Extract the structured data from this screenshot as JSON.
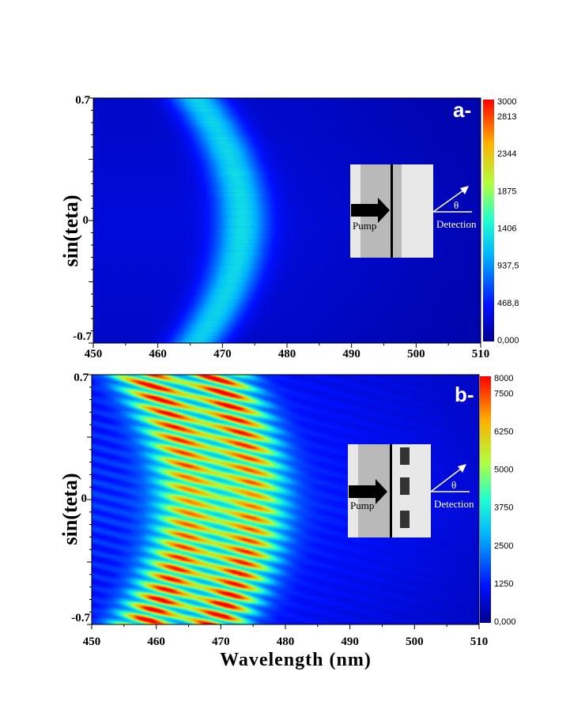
{
  "chart_data": [
    {
      "type": "heatmap",
      "panel_label": "a-",
      "xlabel": "",
      "ylabel": "sin(teta)",
      "xlim": [
        450,
        510
      ],
      "ylim": [
        -0.7,
        0.7
      ],
      "x_ticks": [
        "450",
        "460",
        "470",
        "480",
        "490",
        "500",
        "510"
      ],
      "y_ticks": [
        "0.7",
        "0",
        "-0.7"
      ],
      "colorbar_ticks": [
        "3000",
        "2813",
        "2344",
        "1875",
        "1406",
        "937,5",
        "468,8",
        "0,000"
      ],
      "colorbar_range": [
        0,
        3000
      ],
      "band": {
        "center_wavelength_at_zero": 473,
        "edge_wavelength": 466,
        "width_nm": 4,
        "peak": 1300,
        "background": 300
      },
      "inset": {
        "pump_label": "Pump",
        "detection_label": "Detection",
        "angle_label": "θ"
      }
    },
    {
      "type": "heatmap",
      "panel_label": "b-",
      "xlabel": "Wavelength (nm)",
      "ylabel": "sin(teta)",
      "xlim": [
        450,
        510
      ],
      "ylim": [
        -0.7,
        0.7
      ],
      "x_ticks": [
        "450",
        "460",
        "470",
        "480",
        "490",
        "500",
        "510"
      ],
      "y_ticks": [
        "0.7",
        "0",
        "-0.7"
      ],
      "colorbar_ticks": [
        "8000",
        "7500",
        "6250",
        "5000",
        "3750",
        "2500",
        "1250",
        "0,000"
      ],
      "colorbar_range": [
        0,
        8000
      ],
      "bands": [
        {
          "center_wavelength_at_zero": 465,
          "edge_wavelength": 458,
          "width_nm": 5
        },
        {
          "center_wavelength_at_zero": 475,
          "edge_wavelength": 469,
          "width_nm": 5
        }
      ],
      "peak": 7800,
      "background": 1500,
      "inset": {
        "pump_label": "Pump",
        "detection_label": "Detection",
        "angle_label": "θ"
      }
    }
  ],
  "colors": {
    "low": "#0a1fb0",
    "mid": "#00e0e0",
    "high": "#ff0000"
  }
}
